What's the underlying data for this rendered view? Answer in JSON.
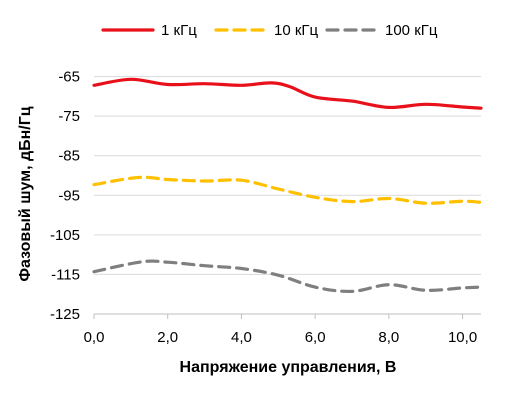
{
  "chart_data": {
    "type": "line",
    "title": "",
    "xlabel": "Напряжение управления, В",
    "ylabel": "Фазовый шум, дБн/Гц",
    "xlim": [
      0,
      10.5
    ],
    "ylim": [
      -125,
      -55
    ],
    "x_ticks": [
      0,
      2,
      4,
      6,
      8,
      10
    ],
    "x_tick_labels": [
      "0,0",
      "2,0",
      "4,0",
      "6,0",
      "8,0",
      "10,0"
    ],
    "y_ticks": [
      -65,
      -75,
      -85,
      -95,
      -105,
      -115,
      -125
    ],
    "y_tick_labels": [
      "-65",
      "-75",
      "-85",
      "-95",
      "-105",
      "-115",
      "-125"
    ],
    "grid": "horizontal",
    "legend_position": "top",
    "series": [
      {
        "name": "1 кГц",
        "color": "#e8101a",
        "style": "solid",
        "points": [
          [
            0,
            -67.2
          ],
          [
            1,
            -65.7
          ],
          [
            2,
            -67
          ],
          [
            3,
            -66.8
          ],
          [
            4,
            -67.2
          ],
          [
            4.8,
            -66.6
          ],
          [
            5.3,
            -67.5
          ],
          [
            6,
            -70.2
          ],
          [
            7,
            -71.2
          ],
          [
            8,
            -72.8
          ],
          [
            9,
            -72
          ],
          [
            10,
            -72.7
          ],
          [
            10.5,
            -73
          ]
        ]
      },
      {
        "name": "10 кГц",
        "color": "#ffc000",
        "style": "dashed",
        "points": [
          [
            0,
            -92.3
          ],
          [
            1.2,
            -90.5
          ],
          [
            2,
            -91
          ],
          [
            3,
            -91.4
          ],
          [
            4,
            -91.2
          ],
          [
            5,
            -93.4
          ],
          [
            6,
            -95.5
          ],
          [
            7,
            -96.6
          ],
          [
            8,
            -95.8
          ],
          [
            9,
            -97
          ],
          [
            10,
            -96.5
          ],
          [
            10.5,
            -96.8
          ]
        ]
      },
      {
        "name": "100 кГц",
        "color": "#7f7f7f",
        "style": "dashed",
        "points": [
          [
            0,
            -114.3
          ],
          [
            1.3,
            -111.8
          ],
          [
            2,
            -111.9
          ],
          [
            3,
            -112.8
          ],
          [
            4,
            -113.5
          ],
          [
            5,
            -115.2
          ],
          [
            6,
            -118.2
          ],
          [
            7,
            -119.3
          ],
          [
            8,
            -117.6
          ],
          [
            9,
            -119
          ],
          [
            10,
            -118.4
          ],
          [
            10.5,
            -118.2
          ]
        ]
      }
    ]
  }
}
